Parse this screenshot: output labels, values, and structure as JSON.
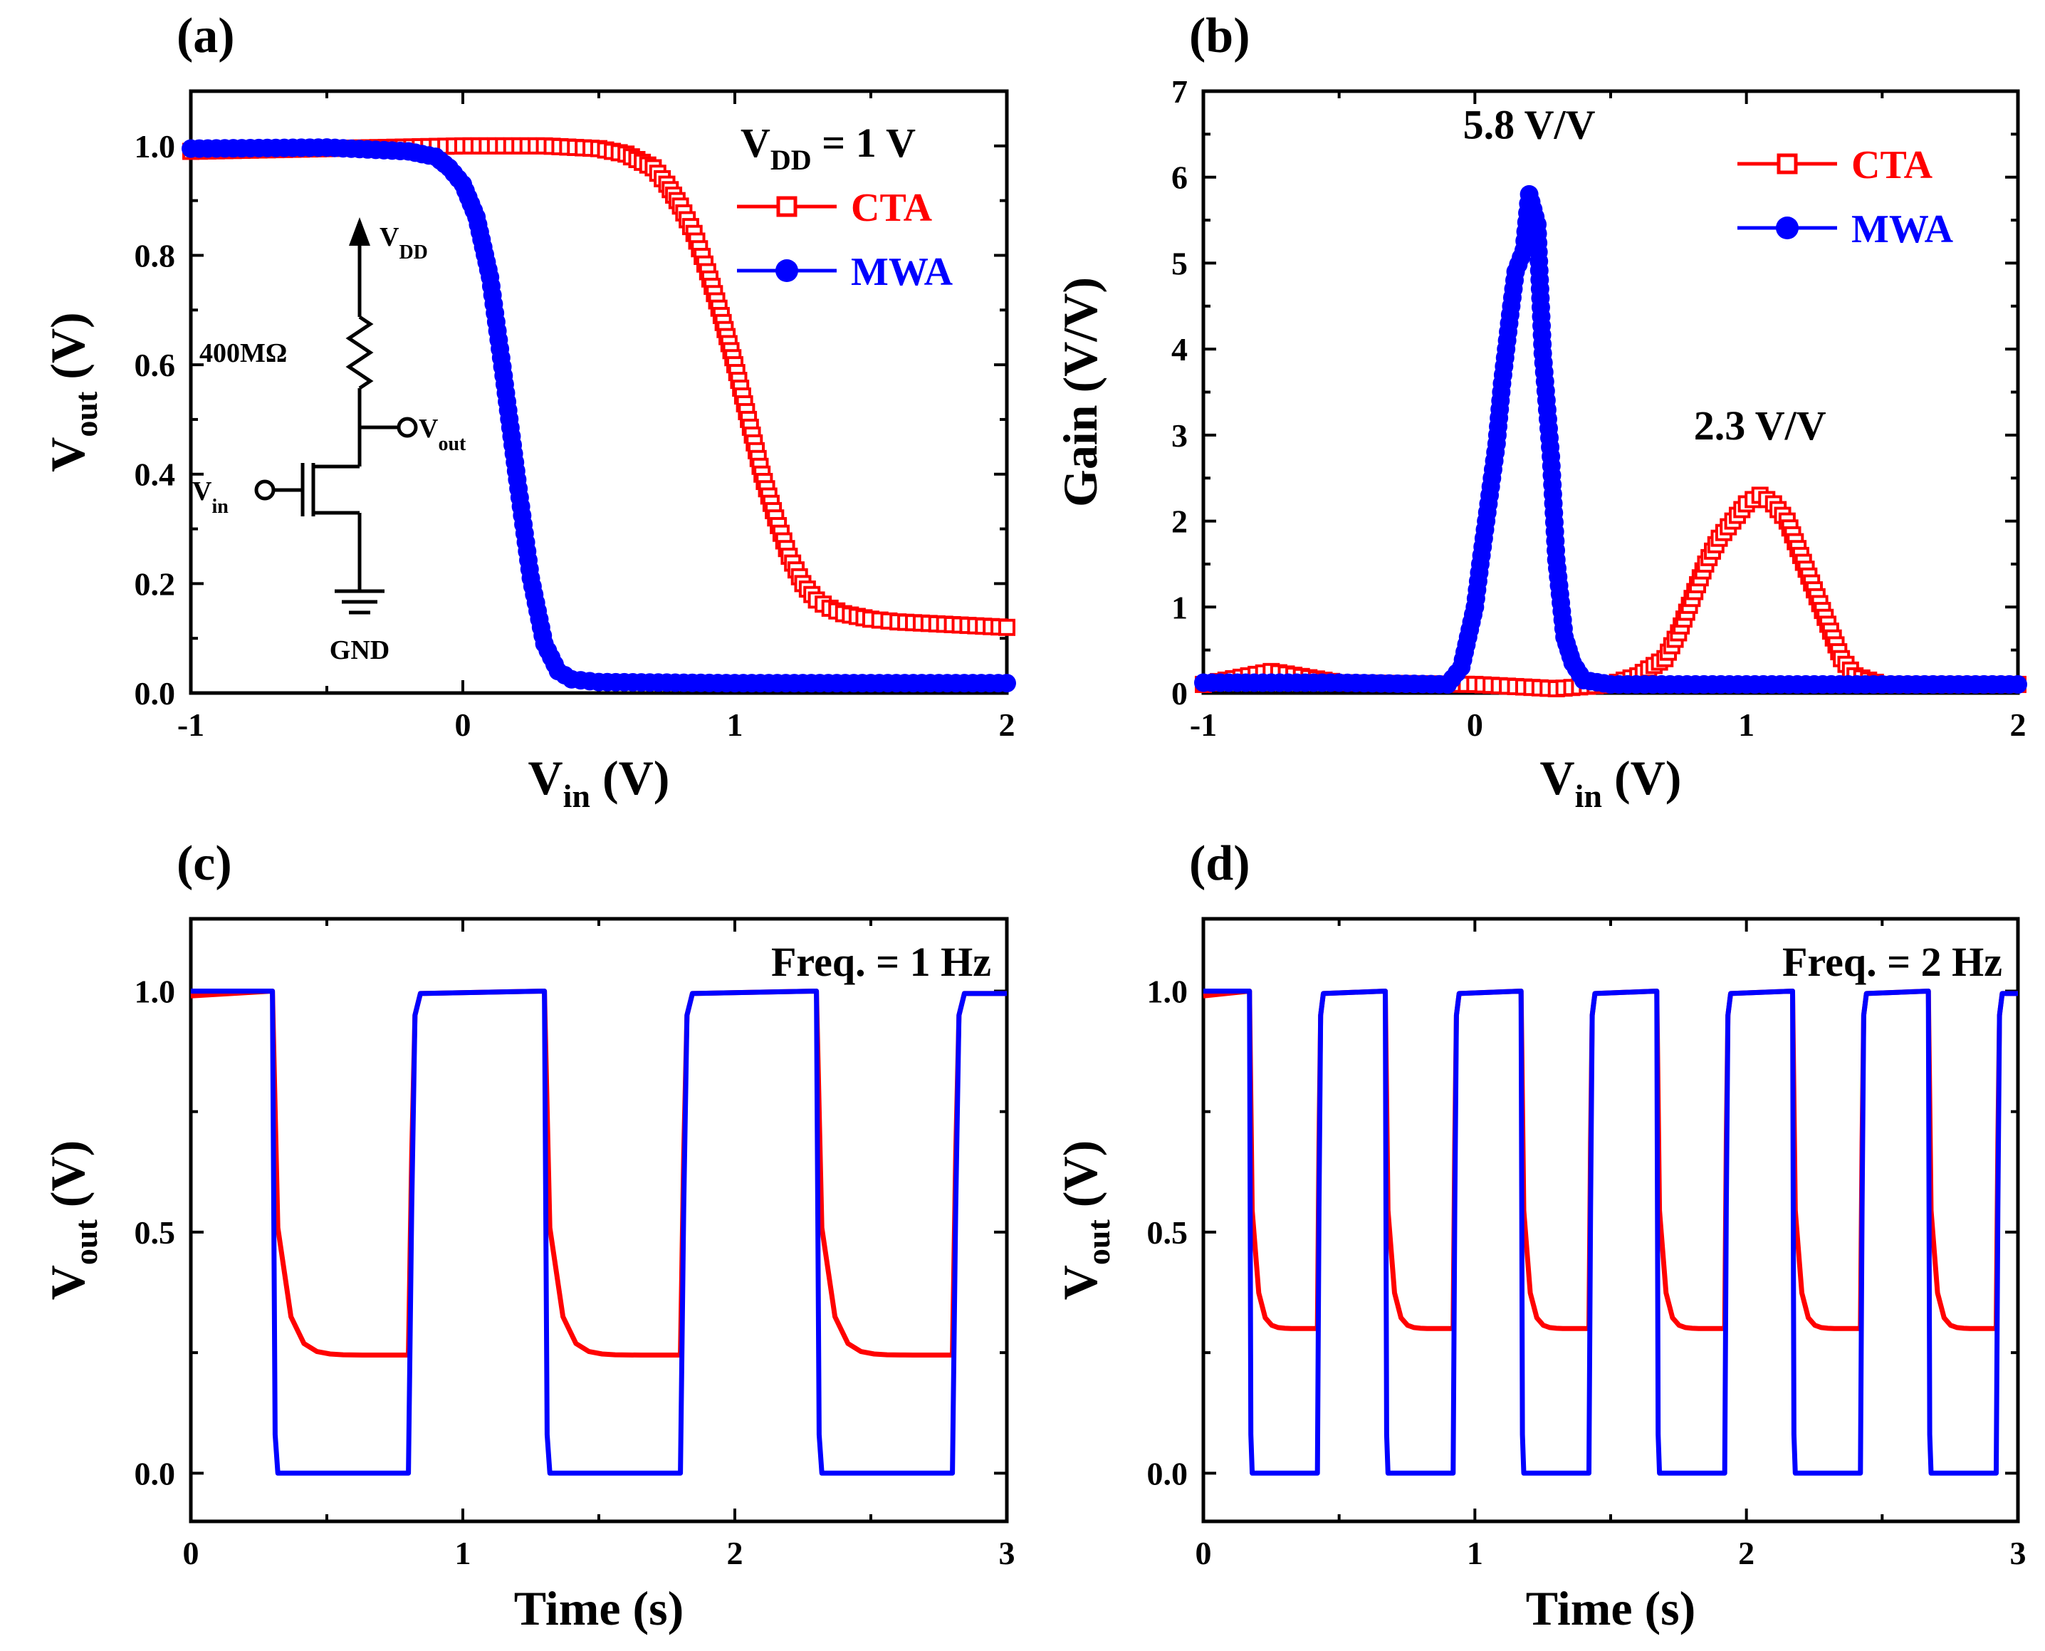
{
  "colors": {
    "cta": "#ff0000",
    "mwa": "#0000ff",
    "axis": "#000000"
  },
  "chart_data": [
    {
      "id": "a",
      "panel_label": "(a)",
      "type": "line",
      "xlabel": "V",
      "xlabel_sub": "in",
      "xlabel_unit": " (V)",
      "ylabel": "V",
      "ylabel_sub": "out",
      "ylabel_unit": " (V)",
      "xlim": [
        -1,
        2
      ],
      "ylim": [
        0,
        1.1
      ],
      "xticks": [
        -1,
        0,
        1,
        2
      ],
      "xtick_labels": [
        "-1",
        "0",
        "1",
        "2"
      ],
      "yticks": [
        0,
        0.2,
        0.4,
        0.6,
        0.8,
        1.0
      ],
      "ytick_labels": [
        "0.0",
        "0.2",
        "0.4",
        "0.6",
        "0.8",
        "1.0"
      ],
      "annotation": {
        "main": "V",
        "sub": "DD",
        "rest": " = 1 V"
      },
      "legend": [
        {
          "name": "CTA",
          "marker": "open-square"
        },
        {
          "name": "MWA",
          "marker": "filled-circle"
        }
      ],
      "inset": {
        "vdd": "V",
        "vdd_sub": "DD",
        "resistor": "400MΩ",
        "vout": "V",
        "vout_sub": "out",
        "vin": "V",
        "vin_sub": "in",
        "gnd": "GND"
      },
      "series": [
        {
          "name": "CTA",
          "marker": "open-square",
          "x": [
            -1.0,
            -0.5,
            0.0,
            0.3,
            0.5,
            0.6,
            0.7,
            0.75,
            0.8,
            0.85,
            0.9,
            0.95,
            1.0,
            1.05,
            1.1,
            1.15,
            1.2,
            1.25,
            1.3,
            1.35,
            1.4,
            1.5,
            1.6,
            1.8,
            2.0
          ],
          "y": [
            0.99,
            0.995,
            1.0,
            1.0,
            0.995,
            0.985,
            0.96,
            0.93,
            0.89,
            0.84,
            0.77,
            0.69,
            0.6,
            0.5,
            0.4,
            0.32,
            0.25,
            0.2,
            0.17,
            0.155,
            0.145,
            0.135,
            0.13,
            0.125,
            0.12
          ]
        },
        {
          "name": "MWA",
          "marker": "filled-circle",
          "x": [
            -1.0,
            -0.5,
            -0.2,
            -0.1,
            -0.05,
            0.0,
            0.05,
            0.1,
            0.15,
            0.2,
            0.25,
            0.3,
            0.35,
            0.4,
            0.5,
            1.0,
            2.0
          ],
          "y": [
            0.995,
            0.997,
            0.99,
            0.98,
            0.96,
            0.93,
            0.87,
            0.76,
            0.58,
            0.39,
            0.21,
            0.09,
            0.04,
            0.025,
            0.02,
            0.018,
            0.018
          ]
        }
      ]
    },
    {
      "id": "b",
      "panel_label": "(b)",
      "type": "line",
      "xlabel": "V",
      "xlabel_sub": "in",
      "xlabel_unit": " (V)",
      "ylabel": "Gain (V/V)",
      "xlim": [
        -1,
        2
      ],
      "ylim": [
        0,
        7
      ],
      "xticks": [
        -1,
        0,
        1,
        2
      ],
      "xtick_labels": [
        "-1",
        "0",
        "1",
        "2"
      ],
      "yticks": [
        0,
        1,
        2,
        3,
        4,
        5,
        6,
        7
      ],
      "ytick_labels": [
        "0",
        "1",
        "2",
        "3",
        "4",
        "5",
        "6",
        "7"
      ],
      "annotations": [
        {
          "text": "5.8 V/V",
          "x": 0.2,
          "y": 6.45,
          "series": "MWA"
        },
        {
          "text": "2.3 V/V",
          "x": 1.05,
          "y": 2.95,
          "series": "CTA"
        }
      ],
      "legend": [
        {
          "name": "CTA",
          "marker": "open-square"
        },
        {
          "name": "MWA",
          "marker": "filled-circle"
        }
      ],
      "series": [
        {
          "name": "CTA",
          "marker": "open-square",
          "x": [
            -1.0,
            -0.75,
            -0.5,
            0.0,
            0.3,
            0.5,
            0.6,
            0.7,
            0.75,
            0.8,
            0.85,
            0.9,
            0.95,
            1.0,
            1.05,
            1.1,
            1.15,
            1.2,
            1.25,
            1.3,
            1.35,
            1.4,
            1.5,
            1.7,
            2.0
          ],
          "y": [
            0.1,
            0.25,
            0.12,
            0.1,
            0.05,
            0.1,
            0.2,
            0.4,
            0.7,
            1.1,
            1.5,
            1.8,
            2.0,
            2.2,
            2.3,
            2.2,
            2.0,
            1.6,
            1.2,
            0.8,
            0.4,
            0.2,
            0.1,
            0.1,
            0.1
          ]
        },
        {
          "name": "MWA",
          "marker": "filled-circle",
          "x": [
            -1.0,
            -0.5,
            -0.1,
            -0.05,
            0.0,
            0.02,
            0.05,
            0.08,
            0.1,
            0.13,
            0.15,
            0.18,
            0.2,
            0.23,
            0.25,
            0.28,
            0.3,
            0.33,
            0.36,
            0.4,
            0.5,
            1.0,
            2.0
          ],
          "y": [
            0.12,
            0.12,
            0.1,
            0.3,
            1.0,
            1.5,
            2.2,
            2.9,
            3.6,
            4.4,
            4.9,
            5.15,
            5.8,
            5.45,
            3.95,
            2.75,
            1.55,
            0.65,
            0.35,
            0.15,
            0.1,
            0.1,
            0.1
          ]
        }
      ]
    },
    {
      "id": "c",
      "panel_label": "(c)",
      "type": "line",
      "xlabel": "Time (s)",
      "ylabel": "V",
      "ylabel_sub": "out",
      "ylabel_unit": " (V)",
      "xlim": [
        0,
        3
      ],
      "ylim": [
        -0.1,
        1.15
      ],
      "xticks": [
        0,
        1,
        2,
        3
      ],
      "xtick_labels": [
        "0",
        "1",
        "2",
        "3"
      ],
      "yticks": [
        0,
        0.5,
        1.0
      ],
      "ytick_labels": [
        "0.0",
        "0.5",
        "1.0"
      ],
      "annotation": "Freq. = 1 Hz",
      "series": [
        {
          "name": "CTA",
          "frequency_hz": 1,
          "high": 1.0,
          "low": 0.245,
          "fall_start": 0.3
        },
        {
          "name": "MWA",
          "frequency_hz": 1,
          "high": 1.0,
          "low": 0.0,
          "fall_start": 0.3
        }
      ]
    },
    {
      "id": "d",
      "panel_label": "(d)",
      "type": "line",
      "xlabel": "Time (s)",
      "ylabel": "V",
      "ylabel_sub": "out",
      "ylabel_unit": " (V)",
      "xlim": [
        0,
        3
      ],
      "ylim": [
        -0.1,
        1.15
      ],
      "xticks": [
        0,
        1,
        2,
        3
      ],
      "xtick_labels": [
        "0",
        "1",
        "2",
        "3"
      ],
      "yticks": [
        0,
        0.5,
        1.0
      ],
      "ytick_labels": [
        "0.0",
        "0.5",
        "1.0"
      ],
      "annotation": "Freq. = 2 Hz",
      "series": [
        {
          "name": "CTA",
          "frequency_hz": 2,
          "high": 1.0,
          "low": 0.3,
          "fall_start": 0.17
        },
        {
          "name": "MWA",
          "frequency_hz": 2,
          "high": 1.0,
          "low": 0.0,
          "fall_start": 0.17
        }
      ]
    }
  ]
}
